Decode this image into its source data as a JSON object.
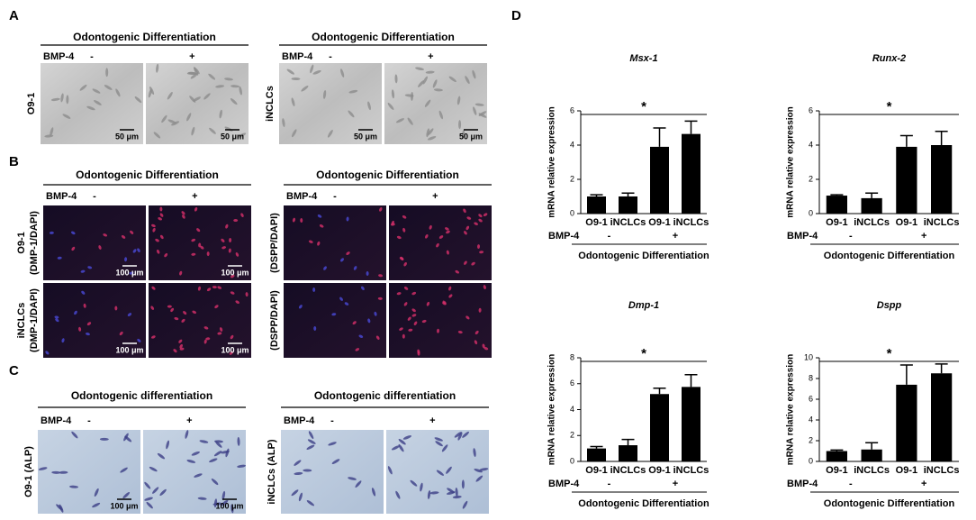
{
  "panels": [
    {
      "letter": "A",
      "groups": [
        {
          "title": "Odontogenic Differentiation",
          "treatment": "BMP-4",
          "levels": [
            "-",
            "+"
          ],
          "rows": [
            {
              "label": [
                "O9-1"
              ],
              "scale_bars": [
                "50 μm",
                "50 μm"
              ]
            }
          ]
        },
        {
          "title": "Odontogenic Differentiation",
          "treatment": "BMP-4",
          "levels": [
            "-",
            "+"
          ],
          "rows": [
            {
              "label": [
                "iNCLCs"
              ],
              "scale_bars": [
                "50 μm",
                "50 μm"
              ]
            }
          ]
        }
      ]
    },
    {
      "letter": "B",
      "groups": [
        {
          "title": "Odontogenic Differentiation",
          "treatment": "BMP-4",
          "levels": [
            "-",
            "+"
          ],
          "rows": [
            {
              "label": [
                "O9-1",
                "(DMP-1/DAPI)"
              ],
              "scale_bars": [
                "100 μm",
                "100 μm"
              ]
            },
            {
              "label": [
                "iNCLCs",
                "(DMP-1/DAPI)"
              ],
              "scale_bars": [
                "100 μm",
                "100 μm"
              ]
            }
          ]
        },
        {
          "title": "Odontogenic Differentiation",
          "treatment": "BMP-4",
          "levels": [
            "-",
            "+"
          ],
          "rows": [
            {
              "label": [
                "(DSPP/DAPI)"
              ],
              "scale_bars": []
            },
            {
              "label": [
                "(DSPP/DAPI)"
              ],
              "scale_bars": []
            }
          ]
        }
      ]
    },
    {
      "letter": "C",
      "groups": [
        {
          "title": "Odontogenic differentiation",
          "treatment": "BMP-4",
          "levels": [
            "-",
            "+"
          ],
          "rows": [
            {
              "label": [
                "O9-1 (ALP)"
              ],
              "scale_bars": [
                "100 μm",
                "100 μm"
              ]
            }
          ]
        },
        {
          "title": "Odontogenic differentiation",
          "treatment": "BMP-4",
          "levels": [
            "-",
            "+"
          ],
          "rows": [
            {
              "label": [
                "iNCLCs (ALP)"
              ],
              "scale_bars": []
            }
          ]
        }
      ]
    }
  ],
  "chart_letter": "D",
  "chart_data": [
    {
      "type": "bar",
      "title": "Msx-1",
      "ylabel": "mRNA relative expression",
      "categories": [
        "O9-1",
        "iNCLCs",
        "O9-1",
        "iNCLCs"
      ],
      "values": [
        1.0,
        1.0,
        3.9,
        4.65
      ],
      "errors": [
        0.1,
        0.2,
        1.1,
        0.75
      ],
      "ylim": [
        0,
        6
      ],
      "yticks": [
        0,
        2,
        4,
        6
      ],
      "color": "#000000",
      "treatment": "BMP-4",
      "levels": [
        "-",
        "+"
      ],
      "group_label": "Odontogenic Differentiation",
      "significance": "*"
    },
    {
      "type": "bar",
      "title": "Runx-2",
      "ylabel": "mRNA relative expression",
      "categories": [
        "O9-1",
        "iNCLCs",
        "O9-1",
        "iNCLCs"
      ],
      "values": [
        1.05,
        0.9,
        3.9,
        4.0
      ],
      "errors": [
        0.05,
        0.3,
        0.65,
        0.8
      ],
      "ylim": [
        0,
        6
      ],
      "yticks": [
        0,
        2,
        4,
        6
      ],
      "color": "#000000",
      "treatment": "BMP-4",
      "levels": [
        "-",
        "+"
      ],
      "group_label": "Odontogenic Differentiation",
      "significance": "*"
    },
    {
      "type": "bar",
      "title": "Dmp-1",
      "ylabel": "mRNA relative expression",
      "categories": [
        "O9-1",
        "iNCLCs",
        "O9-1",
        "iNCLCs"
      ],
      "values": [
        1.0,
        1.25,
        5.2,
        5.75
      ],
      "errors": [
        0.15,
        0.45,
        0.45,
        0.95
      ],
      "ylim": [
        0,
        8
      ],
      "yticks": [
        0,
        2,
        4,
        6,
        8
      ],
      "color": "#000000",
      "treatment": "BMP-4",
      "levels": [
        "-",
        "+"
      ],
      "group_label": "Odontogenic Differentiation",
      "significance": "*"
    },
    {
      "type": "bar",
      "title": "Dspp",
      "ylabel": "mRNA relative expression",
      "categories": [
        "O9-1",
        "iNCLCs",
        "O9-1",
        "iNCLCs"
      ],
      "values": [
        1.0,
        1.15,
        7.4,
        8.5
      ],
      "errors": [
        0.1,
        0.65,
        1.9,
        0.9
      ],
      "ylim": [
        0,
        10
      ],
      "yticks": [
        0,
        2,
        4,
        6,
        8,
        10
      ],
      "color": "#000000",
      "treatment": "BMP-4",
      "levels": [
        "-",
        "+"
      ],
      "group_label": "Odontogenic Differentiation",
      "significance": "*"
    }
  ]
}
